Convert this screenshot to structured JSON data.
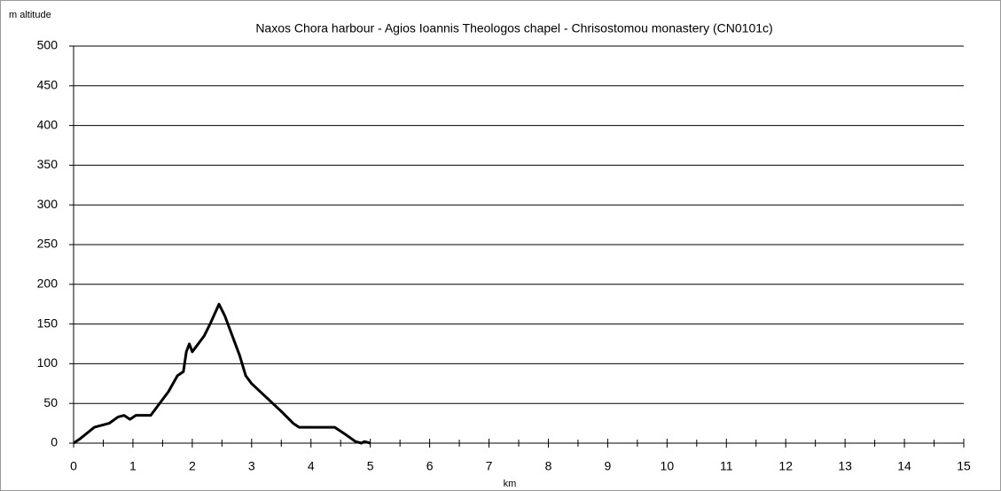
{
  "chart_data": {
    "type": "line",
    "title": "Naxos Chora harbour - Agios Ioannis Theologos chapel - Chrisostomou monastery (CN0101c)",
    "y_label": "m altitude",
    "x_label": "km",
    "x": [
      0,
      0.1,
      0.35,
      0.6,
      0.75,
      0.85,
      0.95,
      1.05,
      1.3,
      1.6,
      1.75,
      1.85,
      1.9,
      1.95,
      2.0,
      2.2,
      2.3,
      2.45,
      2.55,
      2.8,
      2.9,
      3.0,
      3.5,
      3.7,
      3.8,
      4.4,
      4.6,
      4.75,
      4.85,
      4.9,
      5.0
    ],
    "series": [
      {
        "name": "altitude",
        "color": "#000000",
        "values": [
          0,
          5,
          20,
          25,
          33,
          35,
          30,
          35,
          35,
          65,
          85,
          90,
          115,
          125,
          115,
          135,
          150,
          175,
          160,
          110,
          85,
          75,
          40,
          25,
          20,
          20,
          10,
          2,
          0,
          2,
          0
        ]
      }
    ],
    "xlim": [
      0,
      15
    ],
    "xticks": [
      0,
      1,
      2,
      3,
      4,
      5,
      6,
      7,
      8,
      9,
      10,
      11,
      12,
      13,
      14,
      15
    ],
    "ylim": [
      0,
      500
    ],
    "yticks": [
      0,
      50,
      100,
      150,
      200,
      250,
      300,
      350,
      400,
      450,
      500
    ],
    "grid": true
  }
}
